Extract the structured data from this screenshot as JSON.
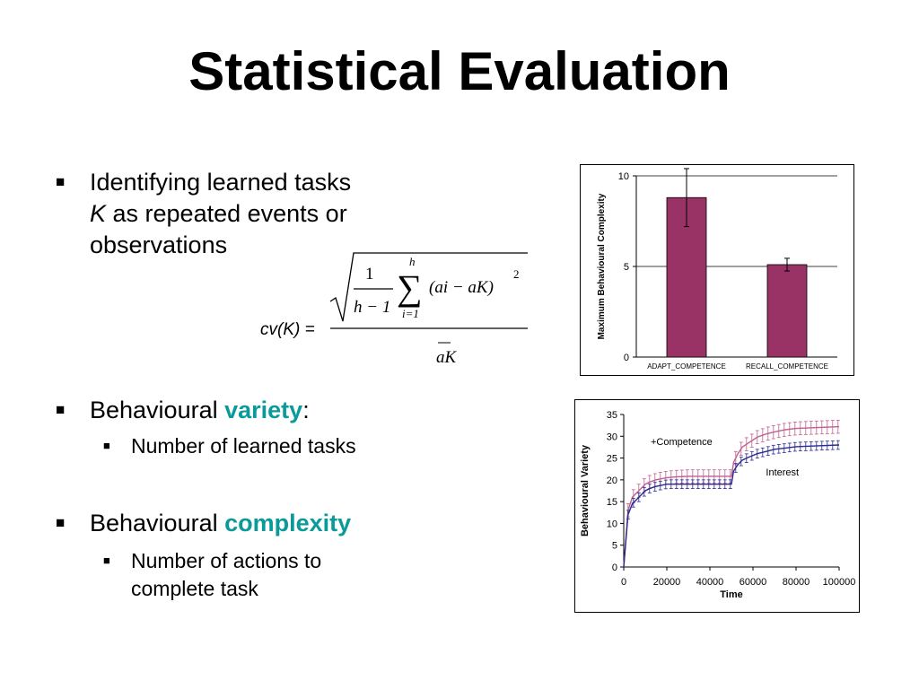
{
  "slide": {
    "title": "Statistical Evaluation",
    "bullets": [
      {
        "lines": [
          "Identifying learned tasks",
          "K as repeated events or",
          "observations"
        ]
      },
      {
        "prefix": "Behavioural ",
        "highlight": "variety",
        "suffix": ":",
        "sub": [
          "Number of learned tasks"
        ]
      },
      {
        "prefix": "Behavioural ",
        "highlight": "complexity",
        "suffix": "",
        "sub": [
          "Number of actions to",
          "complete task"
        ]
      }
    ],
    "bullet_glyph": "■"
  },
  "formula": {
    "lhs": "cv(K) =",
    "numerator_one": "1",
    "h_minus_1": "h − 1",
    "sum_upper": "h",
    "sum_lower": "i=1",
    "term": "(ai − aK)",
    "exponent": "2",
    "denominator": "aK"
  },
  "chart_data": [
    {
      "type": "bar",
      "ylabel": "Maximum Behavioural Complexity",
      "xlabel": "",
      "categories": [
        "ADAPT_COMPETENCE",
        "RECALL_COMPETENCE"
      ],
      "values": [
        8.8,
        5.1
      ],
      "error": [
        1.6,
        0.35
      ],
      "ylim": [
        0,
        10
      ],
      "yticks": [
        0,
        5,
        10
      ],
      "grid": true,
      "bar_color": "#993366"
    },
    {
      "type": "line",
      "xlabel": "Time",
      "ylabel": "Behavioural Variety",
      "xlim": [
        0,
        100000
      ],
      "ylim": [
        0,
        35
      ],
      "xticks": [
        0,
        20000,
        40000,
        60000,
        80000,
        100000
      ],
      "yticks": [
        0,
        5,
        10,
        15,
        20,
        25,
        30,
        35
      ],
      "annotations": [
        "+Competence",
        "Interest"
      ],
      "series": [
        {
          "color": "#c06090",
          "x": [
            0,
            2000,
            4000,
            6000,
            8000,
            10000,
            12000,
            15000,
            20000,
            25000,
            30000,
            40000,
            50000,
            51000,
            53000,
            55000,
            58000,
            62000,
            66000,
            70000,
            75000,
            80000,
            90000,
            100000
          ],
          "y": [
            0,
            13,
            16,
            17,
            18,
            19,
            19.5,
            20,
            20.5,
            20.7,
            20.8,
            20.8,
            20.8,
            24,
            26,
            27.5,
            28.5,
            29.8,
            30.5,
            31,
            31.5,
            31.8,
            32,
            32.2
          ],
          "err": 1.5
        },
        {
          "color": "#2a2a90",
          "x": [
            0,
            2000,
            4000,
            6000,
            8000,
            10000,
            12000,
            15000,
            20000,
            25000,
            30000,
            40000,
            50000,
            51000,
            53000,
            55000,
            58000,
            62000,
            66000,
            70000,
            75000,
            80000,
            90000,
            100000
          ],
          "y": [
            0,
            12,
            14.5,
            15.5,
            16.5,
            17.5,
            18,
            18.5,
            19,
            19,
            19,
            19,
            19,
            22,
            23.5,
            24.5,
            25.2,
            26,
            26.5,
            27,
            27.3,
            27.6,
            27.8,
            28
          ],
          "err": 1.0
        }
      ]
    }
  ]
}
